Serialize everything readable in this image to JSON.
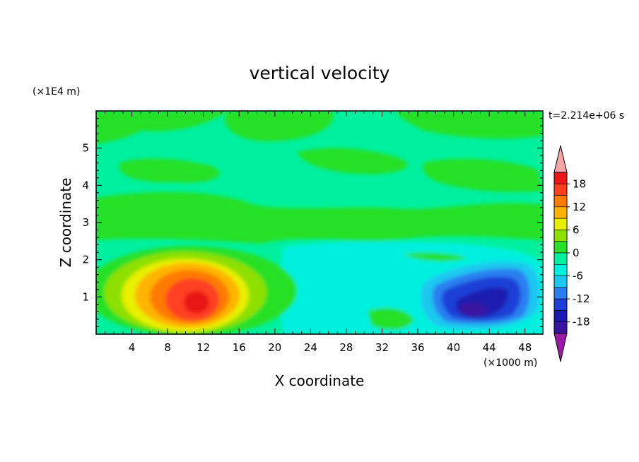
{
  "chart_data": {
    "type": "heatmap",
    "title": "vertical velocity",
    "xlabel": "X coordinate",
    "ylabel": "Z coordinate",
    "x_unit": "(×1000 m)",
    "y_unit": "(×1E4 m)",
    "time_label": "t=2.214e+06 s",
    "xlim": [
      0,
      50
    ],
    "ylim": [
      0,
      6
    ],
    "x_ticks": [
      4,
      8,
      12,
      16,
      20,
      24,
      28,
      32,
      36,
      40,
      44,
      48
    ],
    "y_ticks": [
      1,
      2,
      3,
      4,
      5
    ],
    "colorbar": {
      "levels": [
        -21,
        -18,
        -15,
        -12,
        -9,
        -6,
        -3,
        0,
        3,
        6,
        9,
        12,
        15,
        18,
        21
      ],
      "tick_labels": [
        "18",
        "12",
        "6",
        "0",
        "-6",
        "-12",
        "-18"
      ],
      "tick_values": [
        18,
        12,
        6,
        0,
        -6,
        -12,
        -18
      ],
      "extend": "both",
      "colors": [
        "#9a1aa8",
        "#3a13a0",
        "#1a1ab0",
        "#1e3fd6",
        "#2a7ff0",
        "#1ac8f0",
        "#00f0e0",
        "#00f0a0",
        "#28e028",
        "#8ee000",
        "#e8f000",
        "#ffb400",
        "#ff7a00",
        "#ff4020",
        "#e81818",
        "#f4a6a6"
      ]
    },
    "features": [
      {
        "name": "updraft",
        "x": 11,
        "z": 0.85,
        "peak": 18
      },
      {
        "name": "downdraft",
        "x": 42,
        "z": 0.7,
        "peak": -17
      }
    ]
  }
}
